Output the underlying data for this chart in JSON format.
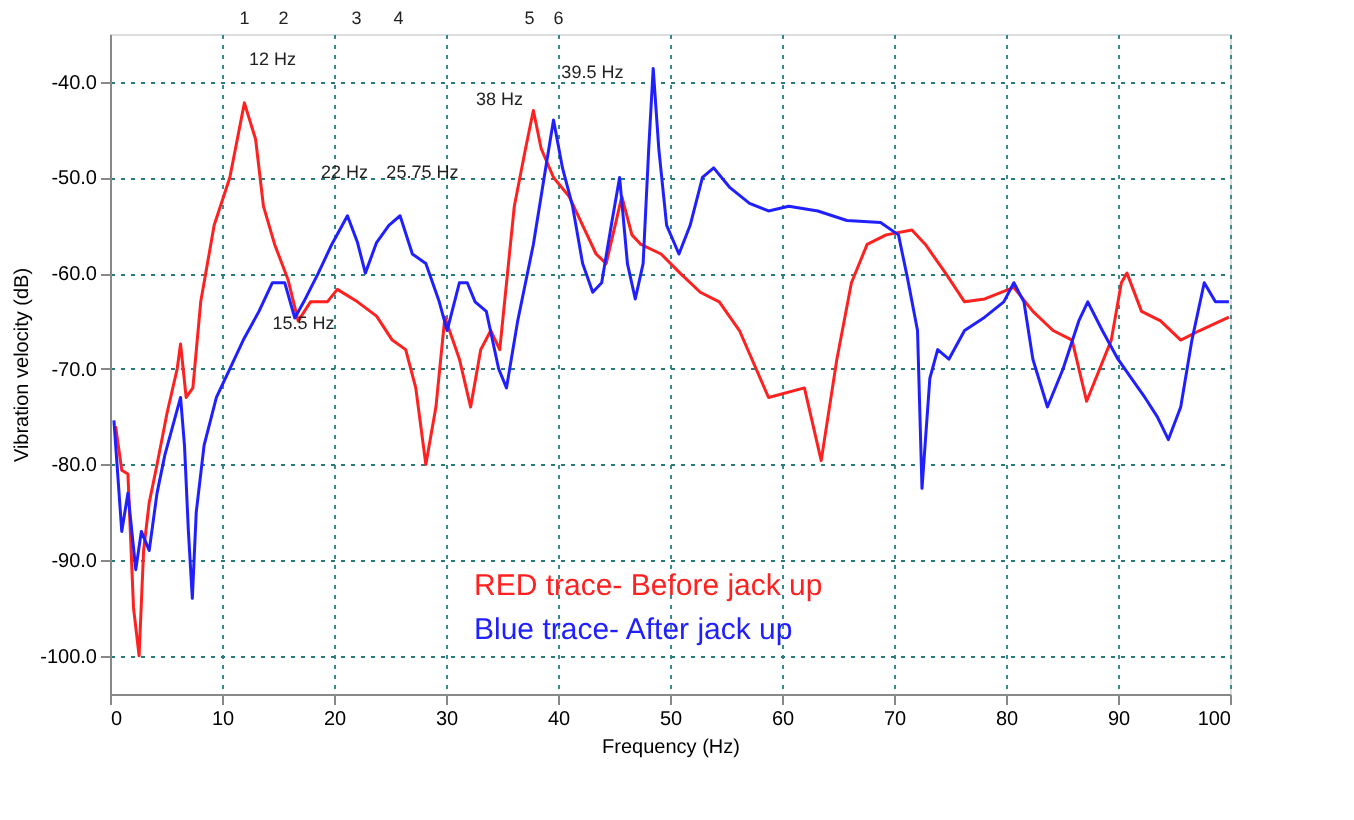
{
  "chart_data": {
    "type": "line",
    "xlabel": "Frequency (Hz)",
    "ylabel": "Vibration velocity (dB)",
    "xlim": [
      0,
      100
    ],
    "xticks": [
      0,
      10,
      20,
      30,
      40,
      50,
      60,
      70,
      80,
      90,
      100
    ],
    "ylim": [
      -104,
      -35
    ],
    "yticks": [
      {
        "value": -40,
        "label": "-40.0"
      },
      {
        "value": -50,
        "label": "-50.0"
      },
      {
        "value": -60,
        "label": "-60.0"
      },
      {
        "value": -70,
        "label": "-70.0"
      },
      {
        "value": -80,
        "label": "-80.0"
      },
      {
        "value": -90,
        "label": "-90.0"
      },
      {
        "value": -100,
        "label": "-100.0"
      }
    ],
    "grid": true,
    "legend": "bottom",
    "line_style": "solid",
    "marker": "none",
    "series": [
      {
        "name": "RED trace- Before jack up",
        "color": "#ff2020",
        "x": [
          0.5,
          1.05,
          1.6,
          2.1,
          2.6,
          3.0,
          3.5,
          4.2,
          5.1,
          6.0,
          6.3,
          6.8,
          7.4,
          8.1,
          9.3,
          10.7,
          12.0,
          13.0,
          13.7,
          14.7,
          15.9,
          16.8,
          17.9,
          19.4,
          20.3,
          22.1,
          23.8,
          25.2,
          26.4,
          27.3,
          28.2,
          29.1,
          29.9,
          31.2,
          32.2,
          33.1,
          34.0,
          34.8,
          36.1,
          37.1,
          37.8,
          38.5,
          39.6,
          41.0,
          42.2,
          43.4,
          44.3,
          45.7,
          46.6,
          47.4,
          49.2,
          50.9,
          52.7,
          54.4,
          56.2,
          58.8,
          62.0,
          63.5,
          64.9,
          66.2,
          67.6,
          69.3,
          71.6,
          72.8,
          74.6,
          76.3,
          78.1,
          80.7,
          82.4,
          84.2,
          85.9,
          87.2,
          89.4,
          90.3,
          90.8,
          92.1,
          93.8,
          95.6,
          97.3,
          99.9
        ],
        "values": [
          -76,
          -80.6,
          -81,
          -95,
          -100,
          -89,
          -84,
          -80,
          -74.6,
          -70,
          -67.4,
          -73,
          -72,
          -63,
          -55,
          -50,
          -42.2,
          -46,
          -53,
          -57,
          -60.7,
          -65,
          -63,
          -63,
          -61.7,
          -63,
          -64.5,
          -67,
          -68,
          -72,
          -80,
          -74,
          -64.6,
          -69,
          -74,
          -68,
          -66,
          -68,
          -53,
          -47,
          -43,
          -47,
          -50,
          -52,
          -55,
          -58,
          -59,
          -52,
          -56,
          -57,
          -58,
          -60,
          -62,
          -63,
          -66,
          -73,
          -72,
          -79.6,
          -69,
          -61,
          -57,
          -56,
          -55.5,
          -57,
          -60,
          -63,
          -62.7,
          -61.5,
          -64,
          -66,
          -67,
          -73.4,
          -67,
          -61,
          -60,
          -64,
          -65,
          -67,
          -66,
          -64.6
        ]
      },
      {
        "name": "Blue trace- After jack up",
        "color": "#2020ff",
        "x": [
          0.35,
          1.05,
          1.6,
          2.3,
          2.8,
          3.5,
          4.2,
          4.9,
          5.6,
          6.3,
          6.65,
          7.0,
          7.35,
          7.7,
          8.4,
          9.5,
          10.7,
          11.9,
          13.3,
          14.5,
          15.6,
          16.5,
          17.3,
          18.6,
          19.8,
          21.2,
          22.1,
          22.8,
          23.8,
          24.9,
          25.9,
          27.0,
          28.2,
          29.4,
          30.1,
          31.2,
          31.9,
          32.6,
          33.6,
          34.7,
          35.4,
          36.4,
          37.8,
          38.9,
          39.6,
          40.4,
          41.3,
          42.2,
          43.1,
          43.9,
          44.8,
          45.5,
          46.2,
          46.9,
          47.6,
          48.1,
          48.5,
          49.0,
          49.7,
          50.8,
          51.8,
          52.9,
          53.9,
          55.3,
          57.1,
          58.8,
          60.6,
          63.2,
          65.8,
          68.8,
          70.4,
          71.2,
          72.1,
          72.5,
          73.2,
          73.9,
          74.9,
          76.3,
          78.1,
          79.8,
          80.7,
          81.6,
          82.4,
          83.7,
          85.1,
          86.5,
          87.3,
          88.6,
          90.0,
          91.2,
          92.4,
          93.5,
          94.5,
          95.6,
          96.6,
          97.7,
          98.7,
          99.9
        ],
        "values": [
          -75.4,
          -87,
          -83,
          -91,
          -87,
          -89,
          -83,
          -79,
          -76,
          -73,
          -78,
          -87,
          -94,
          -85,
          -78,
          -73,
          -70,
          -67,
          -64,
          -61,
          -61,
          -64.7,
          -63,
          -60,
          -57,
          -54,
          -56.8,
          -60,
          -56.8,
          -55,
          -54,
          -58,
          -59,
          -63,
          -66,
          -61,
          -61,
          -63,
          -64,
          -70,
          -72,
          -65,
          -57,
          -49,
          -44,
          -49,
          -53,
          -59,
          -62,
          -61,
          -54.7,
          -50,
          -59,
          -62.7,
          -59,
          -47,
          -38.6,
          -47,
          -55,
          -58,
          -55,
          -50,
          -49,
          -51,
          -52.7,
          -53.5,
          -53,
          -53.5,
          -54.5,
          -54.7,
          -56,
          -60.5,
          -66,
          -82.5,
          -71,
          -68,
          -69,
          -66,
          -64.6,
          -63,
          -61,
          -63,
          -69,
          -74,
          -70,
          -65,
          -63,
          -66,
          -69,
          -71,
          -73,
          -75,
          -77.4,
          -74,
          -67,
          -61,
          -63,
          -63
        ]
      }
    ],
    "annotations": [
      {
        "text": "12 Hz",
        "x": 12,
        "y": -42.2
      },
      {
        "text": "15.5 Hz",
        "x": 15.5,
        "y": -61
      },
      {
        "text": "22 Hz",
        "x": 22,
        "y": -54
      },
      {
        "text": "25.75 Hz",
        "x": 25.75,
        "y": -54
      },
      {
        "text": "38 Hz",
        "x": 38,
        "y": -43
      },
      {
        "text": "39.5 Hz",
        "x": 39.5,
        "y": -44
      },
      "1",
      "2",
      "3",
      "4",
      "5",
      "6"
    ]
  }
}
